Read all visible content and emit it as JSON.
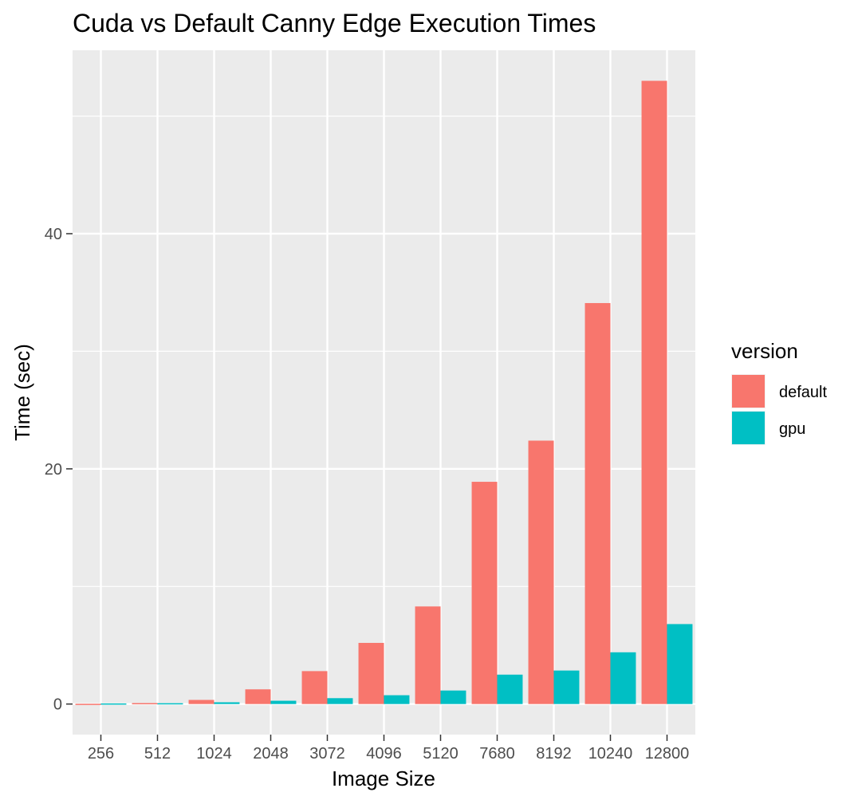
{
  "chart_data": {
    "type": "bar",
    "title": "Cuda vs Default Canny Edge Execution Times",
    "xlabel": "Image Size",
    "ylabel": "Time (sec)",
    "categories": [
      "256",
      "512",
      "1024",
      "2048",
      "3072",
      "4096",
      "5120",
      "7680",
      "8192",
      "10240",
      "12800"
    ],
    "series": [
      {
        "name": "default",
        "color": "#F8766D",
        "values": [
          0.02,
          0.08,
          0.35,
          1.25,
          2.8,
          5.2,
          8.3,
          18.9,
          22.4,
          34.1,
          53.0
        ]
      },
      {
        "name": "gpu",
        "color": "#00BFC4",
        "values": [
          0.05,
          0.07,
          0.15,
          0.28,
          0.5,
          0.75,
          1.15,
          2.5,
          2.85,
          4.4,
          6.8
        ]
      }
    ],
    "ylim": [
      -2.6,
      55.6
    ],
    "yticks": [
      0,
      20,
      40
    ],
    "ytick_labels": [
      "0",
      "20",
      "40"
    ],
    "grid": true,
    "background": "#EBEBEB",
    "legend": {
      "title": "version",
      "position": "right"
    }
  }
}
